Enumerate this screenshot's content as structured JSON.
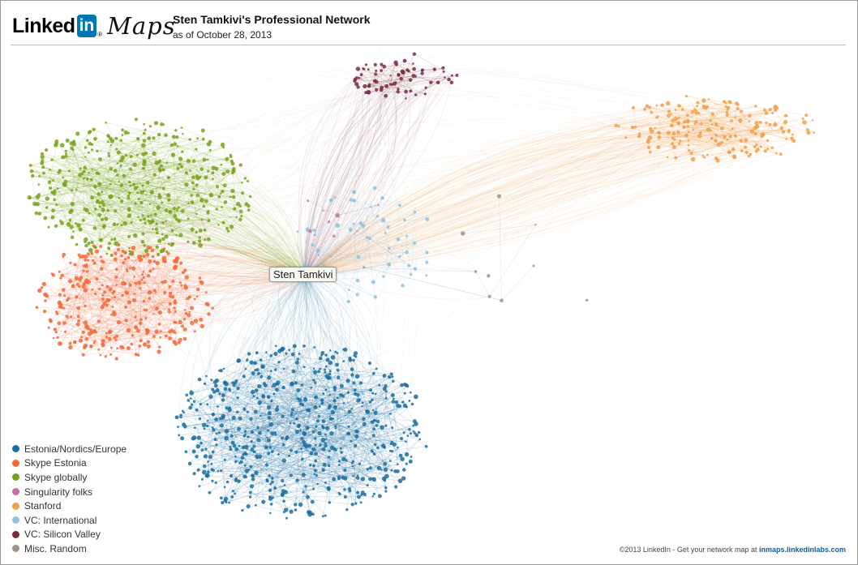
{
  "header": {
    "logo_text": "Linked",
    "logo_badge": "in",
    "logo_mark": "®",
    "logo_product": "Maps",
    "title": "Sten Tamkivi's Professional Network",
    "subtitle": "as of October 28, 2013"
  },
  "center_node": {
    "label": "Sten Tamkivi"
  },
  "clusters": [
    {
      "name": "Estonia/Nordics/Europe",
      "color": "#1a6fa0"
    },
    {
      "name": "Skype Estonia",
      "color": "#f26a3a"
    },
    {
      "name": "Skype globally",
      "color": "#77a31c"
    },
    {
      "name": "Singularity folks",
      "color": "#c86ea6"
    },
    {
      "name": "Stanford",
      "color": "#f0a04b"
    },
    {
      "name": "VC: International",
      "color": "#8cc3dd"
    },
    {
      "name": "VC: Silicon Valley",
      "color": "#7a2a3a"
    },
    {
      "name": "Misc. Random",
      "color": "#a0938a"
    }
  ],
  "footer": {
    "text": "©2013 LinkedIn - Get your network map at ",
    "link": "inmaps.linkedinlabs.com"
  }
}
